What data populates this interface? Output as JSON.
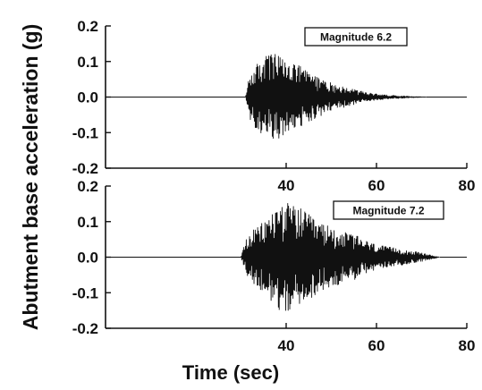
{
  "chart_data": {
    "type": "line",
    "ylabel": "Abutment base acceleration (g)",
    "xlabel": "Time (sec)",
    "xlim": [
      0,
      80
    ],
    "x_ticks": [
      "40",
      "60",
      "80"
    ],
    "y_ticks": [
      "0.2",
      "0.1",
      "0.0",
      "-0.1",
      "-0.2"
    ],
    "panels": [
      {
        "name": "Magnitude 6.2",
        "ylim": [
          -0.2,
          0.2
        ],
        "onset": 31,
        "end": 71,
        "envelope": [
          [
            31,
            0.0
          ],
          [
            32,
            0.07
          ],
          [
            34,
            0.1
          ],
          [
            36,
            0.125
          ],
          [
            38,
            0.12
          ],
          [
            40,
            0.1
          ],
          [
            42,
            0.095
          ],
          [
            44,
            0.08
          ],
          [
            46,
            0.065
          ],
          [
            48,
            0.05
          ],
          [
            50,
            0.04
          ],
          [
            54,
            0.025
          ],
          [
            58,
            0.012
          ],
          [
            62,
            0.006
          ],
          [
            66,
            0.003
          ],
          [
            71,
            0.0
          ]
        ]
      },
      {
        "name": "Magnitude 7.2",
        "ylim": [
          -0.2,
          0.2
        ],
        "onset": 30,
        "end": 74,
        "envelope": [
          [
            30,
            0.0
          ],
          [
            31,
            0.05
          ],
          [
            33,
            0.08
          ],
          [
            35,
            0.1
          ],
          [
            37,
            0.13
          ],
          [
            39,
            0.16
          ],
          [
            41,
            0.15
          ],
          [
            43,
            0.14
          ],
          [
            45,
            0.12
          ],
          [
            47,
            0.1
          ],
          [
            49,
            0.09
          ],
          [
            51,
            0.08
          ],
          [
            53,
            0.07
          ],
          [
            55,
            0.065
          ],
          [
            57,
            0.05
          ],
          [
            60,
            0.035
          ],
          [
            63,
            0.028
          ],
          [
            66,
            0.022
          ],
          [
            70,
            0.012
          ],
          [
            74,
            0.0
          ]
        ]
      }
    ],
    "grid": false
  }
}
